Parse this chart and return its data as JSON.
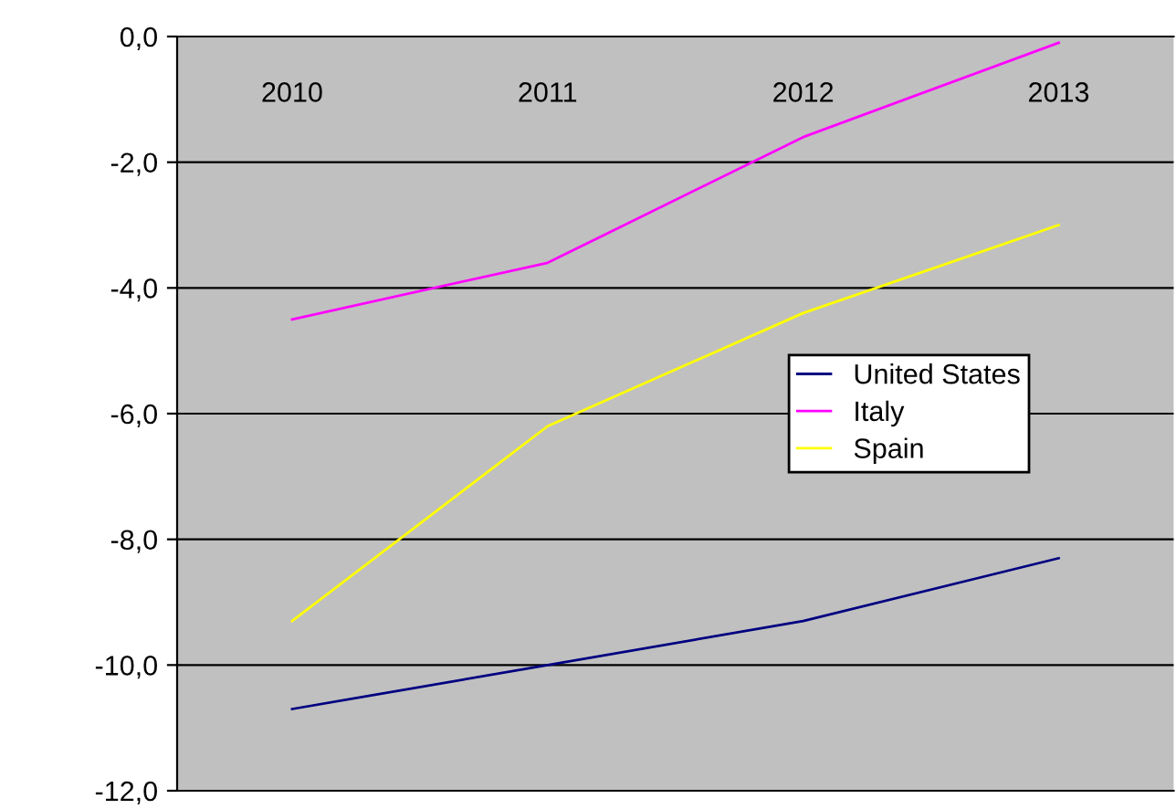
{
  "chart_data": {
    "type": "line",
    "categories": [
      "2010",
      "2011",
      "2012",
      "2013"
    ],
    "series": [
      {
        "name": "United States",
        "color": "#000080",
        "values": [
          -10.7,
          -10.0,
          -9.3,
          -8.3
        ]
      },
      {
        "name": "Italy",
        "color": "#ff00ff",
        "values": [
          -4.5,
          -3.6,
          -1.6,
          -0.1
        ]
      },
      {
        "name": "Spain",
        "color": "#ffff00",
        "values": [
          -9.3,
          -6.2,
          -4.4,
          -3.0
        ]
      }
    ],
    "ylim": [
      -12,
      0
    ],
    "yticks": [
      {
        "value": -12,
        "label": "-12,0"
      },
      {
        "value": -10,
        "label": "-10,0"
      },
      {
        "value": -8,
        "label": "-8,0"
      },
      {
        "value": -6,
        "label": "-6,0"
      },
      {
        "value": -4,
        "label": "-4,0"
      },
      {
        "value": -2,
        "label": "-2,0"
      },
      {
        "value": 0,
        "label": "0,0"
      }
    ],
    "grid": "y",
    "legend": "right",
    "marker": "none",
    "line_style": "solid"
  }
}
